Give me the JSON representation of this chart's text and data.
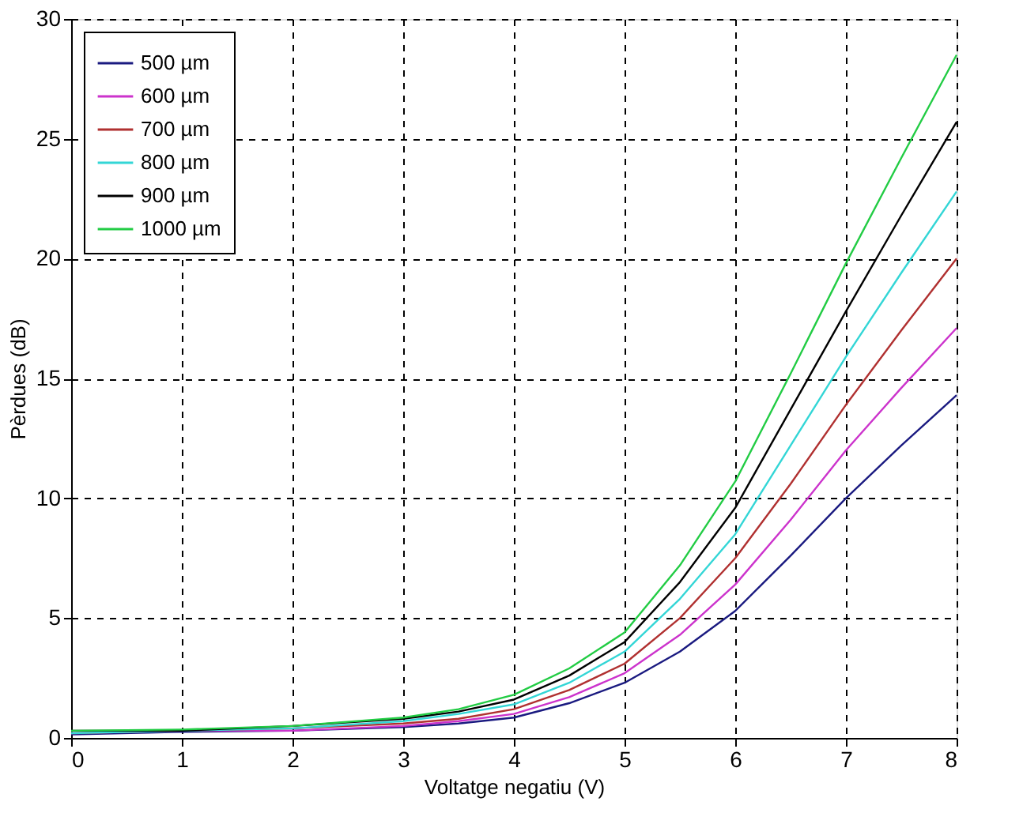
{
  "chart_data": {
    "type": "line",
    "xlabel": "Voltatge negatiu (V)",
    "ylabel": "Pèrdues (dB)",
    "x": [
      0,
      1,
      2,
      3,
      3.5,
      4,
      4.5,
      5,
      5.5,
      6,
      6.5,
      7,
      7.5,
      8
    ],
    "series": [
      {
        "name": "500 µm",
        "color": "#1a1a80",
        "values": [
          0.15,
          0.25,
          0.3,
          0.45,
          0.6,
          0.85,
          1.45,
          2.3,
          3.6,
          5.3,
          7.6,
          10,
          12.2,
          14.3
        ]
      },
      {
        "name": "600 µm",
        "color": "#cc33cc",
        "values": [
          0.2,
          0.3,
          0.3,
          0.5,
          0.7,
          1.0,
          1.7,
          2.7,
          4.3,
          6.4,
          9.1,
          12.0,
          14.6,
          17.1
        ]
      },
      {
        "name": "700 µm",
        "color": "#b03030",
        "values": [
          0.2,
          0.3,
          0.4,
          0.6,
          0.8,
          1.2,
          2.0,
          3.1,
          5.0,
          7.5,
          10.6,
          13.9,
          17.0,
          20.0
        ]
      },
      {
        "name": "800 µm",
        "color": "#33d6d6",
        "values": [
          0.2,
          0.3,
          0.4,
          0.7,
          1.0,
          1.4,
          2.3,
          3.6,
          5.8,
          8.5,
          12.2,
          15.9,
          19.4,
          22.8
        ]
      },
      {
        "name": "900 µm",
        "color": "#000000",
        "values": [
          0.3,
          0.3,
          0.5,
          0.8,
          1.1,
          1.6,
          2.6,
          4.0,
          6.5,
          9.6,
          13.7,
          17.8,
          21.8,
          25.7
        ]
      },
      {
        "name": "1000 µm",
        "color": "#22cc44",
        "values": [
          0.3,
          0.35,
          0.5,
          0.85,
          1.2,
          1.8,
          2.9,
          4.4,
          7.2,
          10.7,
          15.2,
          19.8,
          24.2,
          28.5
        ]
      }
    ],
    "xlim": [
      0,
      8
    ],
    "xticks": [
      0,
      1,
      2,
      3,
      4,
      5,
      6,
      7,
      8
    ],
    "ylim": [
      0,
      30
    ],
    "yticks": [
      0,
      5,
      10,
      15,
      20,
      25,
      30
    ],
    "grid": true,
    "legend": "top left",
    "line_style": "solid",
    "marker": "none"
  }
}
